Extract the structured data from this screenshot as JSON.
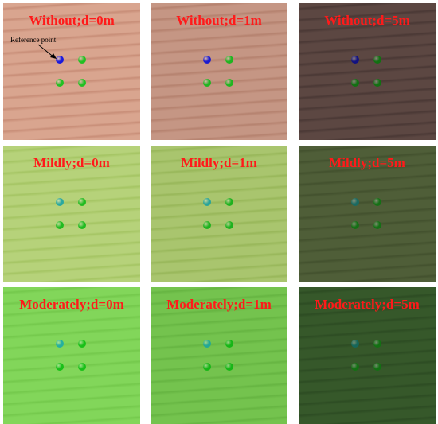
{
  "panels": [
    {
      "label": "Without;d=0m",
      "bg": "#d9a58f",
      "stripe": "#c88e78",
      "ref": "#1a1adc",
      "dot": "#22c022"
    },
    {
      "label": "Without;d=1m",
      "bg": "#c59684",
      "stripe": "#b5826f",
      "ref": "#1a1ad0",
      "dot": "#20b520"
    },
    {
      "label": "Without;d=5m",
      "bg": "#5c4742",
      "stripe": "#4a3835",
      "ref": "#121280",
      "dot": "#127012"
    },
    {
      "label": "Mildly;d=0m",
      "bg": "#b6d27a",
      "stripe": "#a5c564",
      "ref": "#2aa8a0",
      "dot": "#20bb20"
    },
    {
      "label": "Mildly;d=1m",
      "bg": "#a9c56e",
      "stripe": "#98b75a",
      "ref": "#28a39a",
      "dot": "#1eb21e"
    },
    {
      "label": "Mildly;d=5m",
      "bg": "#4f5e38",
      "stripe": "#43512e",
      "ref": "#1a6a62",
      "dot": "#157015"
    },
    {
      "label": "Moderately;d=0m",
      "bg": "#82d65a",
      "stripe": "#74c94c",
      "ref": "#24b0a0",
      "dot": "#18c018"
    },
    {
      "label": "Moderately;d=1m",
      "bg": "#74c34e",
      "stripe": "#66b542",
      "ref": "#22a896",
      "dot": "#16b616"
    },
    {
      "label": "Moderately;d=5m",
      "bg": "#36582a",
      "stripe": "#2d4c23",
      "ref": "#16665a",
      "dot": "#137013"
    }
  ],
  "annotation": {
    "text": "Reference point"
  }
}
